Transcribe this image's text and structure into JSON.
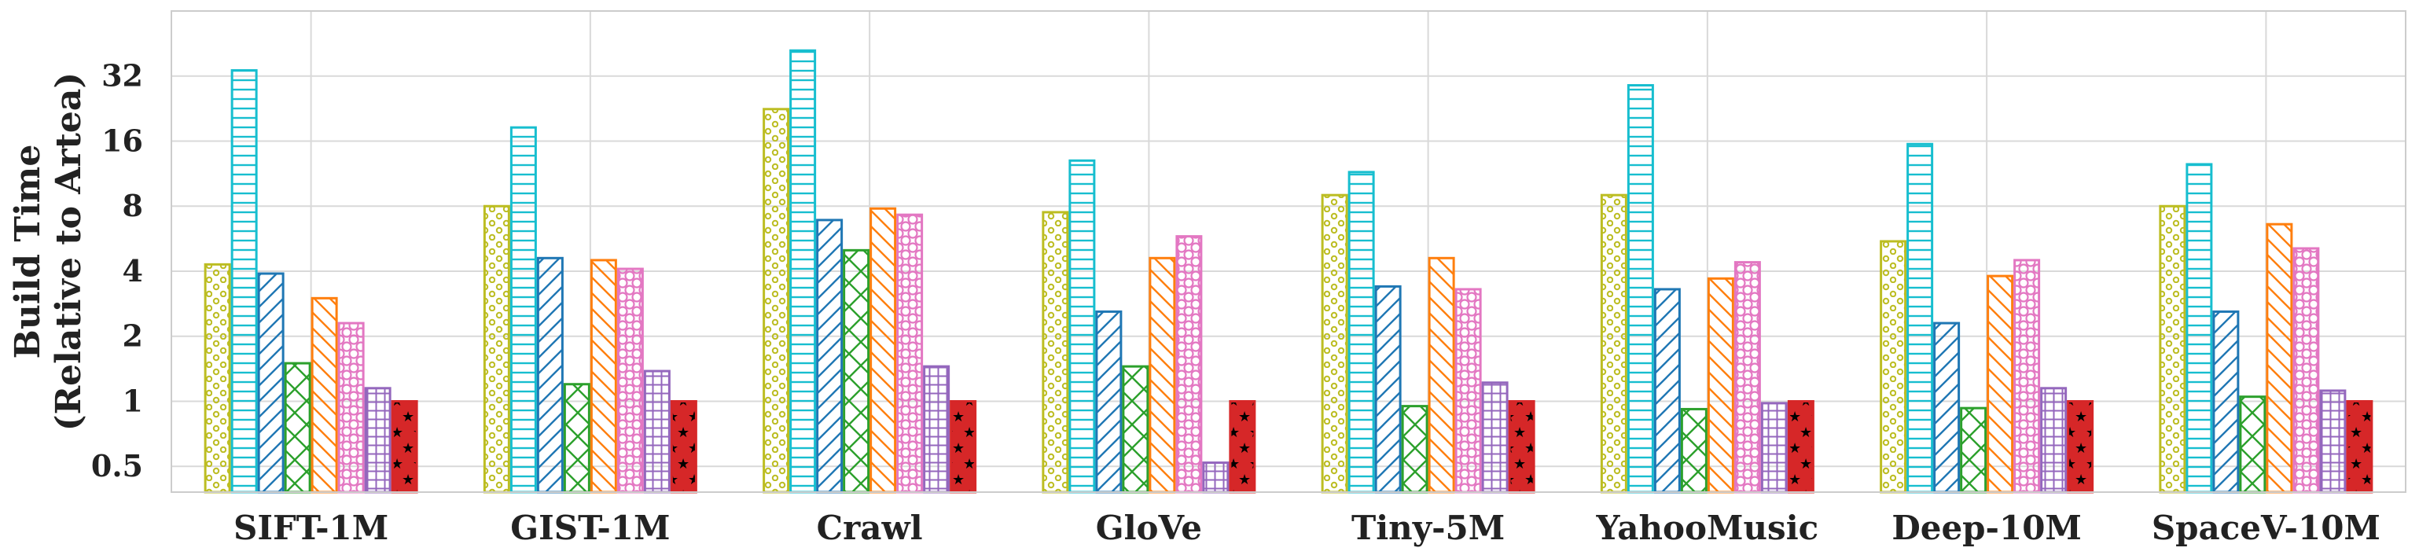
{
  "chart_data": {
    "type": "bar",
    "ylabel_line1": "Build Time",
    "ylabel_line2": "(Relative to Artea)",
    "yscale": "log2",
    "ylim": [
      0.38,
      64
    ],
    "yticks": [
      0.5,
      1,
      2,
      4,
      8,
      16,
      32
    ],
    "ytick_labels": [
      "0.5",
      "1",
      "2",
      "4",
      "8",
      "16",
      "32"
    ],
    "grid": true,
    "categories": [
      "SIFT-1M",
      "GIST-1M",
      "Crawl",
      "GloVe",
      "Tiny-5M",
      "YahooMusic",
      "Deep-10M",
      "SpaceV-10M"
    ],
    "series": [
      {
        "values": [
          4.3,
          8.0,
          22.5,
          7.5,
          9.0,
          9.0,
          5.5,
          8.0
        ],
        "color": "#bcbd22",
        "pattern": "dots"
      },
      {
        "values": [
          34.0,
          18.5,
          42.0,
          13.0,
          11.5,
          29.0,
          15.5,
          12.5
        ],
        "color": "#17becf",
        "pattern": "hlines"
      },
      {
        "values": [
          3.9,
          4.6,
          6.9,
          2.6,
          3.4,
          3.3,
          2.3,
          2.6
        ],
        "color": "#1f77b4",
        "pattern": "diag"
      },
      {
        "values": [
          1.5,
          1.2,
          5.0,
          1.45,
          0.95,
          0.92,
          0.93,
          1.05
        ],
        "color": "#2ca02c",
        "pattern": "cross"
      },
      {
        "values": [
          3.0,
          4.5,
          7.8,
          4.6,
          4.6,
          3.7,
          3.8,
          6.6
        ],
        "color": "#ff7f0e",
        "pattern": "diag"
      },
      {
        "values": [
          2.3,
          4.1,
          7.3,
          5.8,
          3.3,
          4.4,
          4.5,
          5.1
        ],
        "color": "#e377c2",
        "pattern": "circles"
      },
      {
        "values": [
          1.15,
          1.38,
          1.45,
          0.52,
          1.22,
          0.98,
          1.15,
          1.12
        ],
        "color": "#9467bd",
        "pattern": "grid"
      },
      {
        "values": [
          1.0,
          1.0,
          1.0,
          1.0,
          1.0,
          1.0,
          1.0,
          1.0
        ],
        "color": "#d62728",
        "pattern": "stars"
      }
    ]
  }
}
